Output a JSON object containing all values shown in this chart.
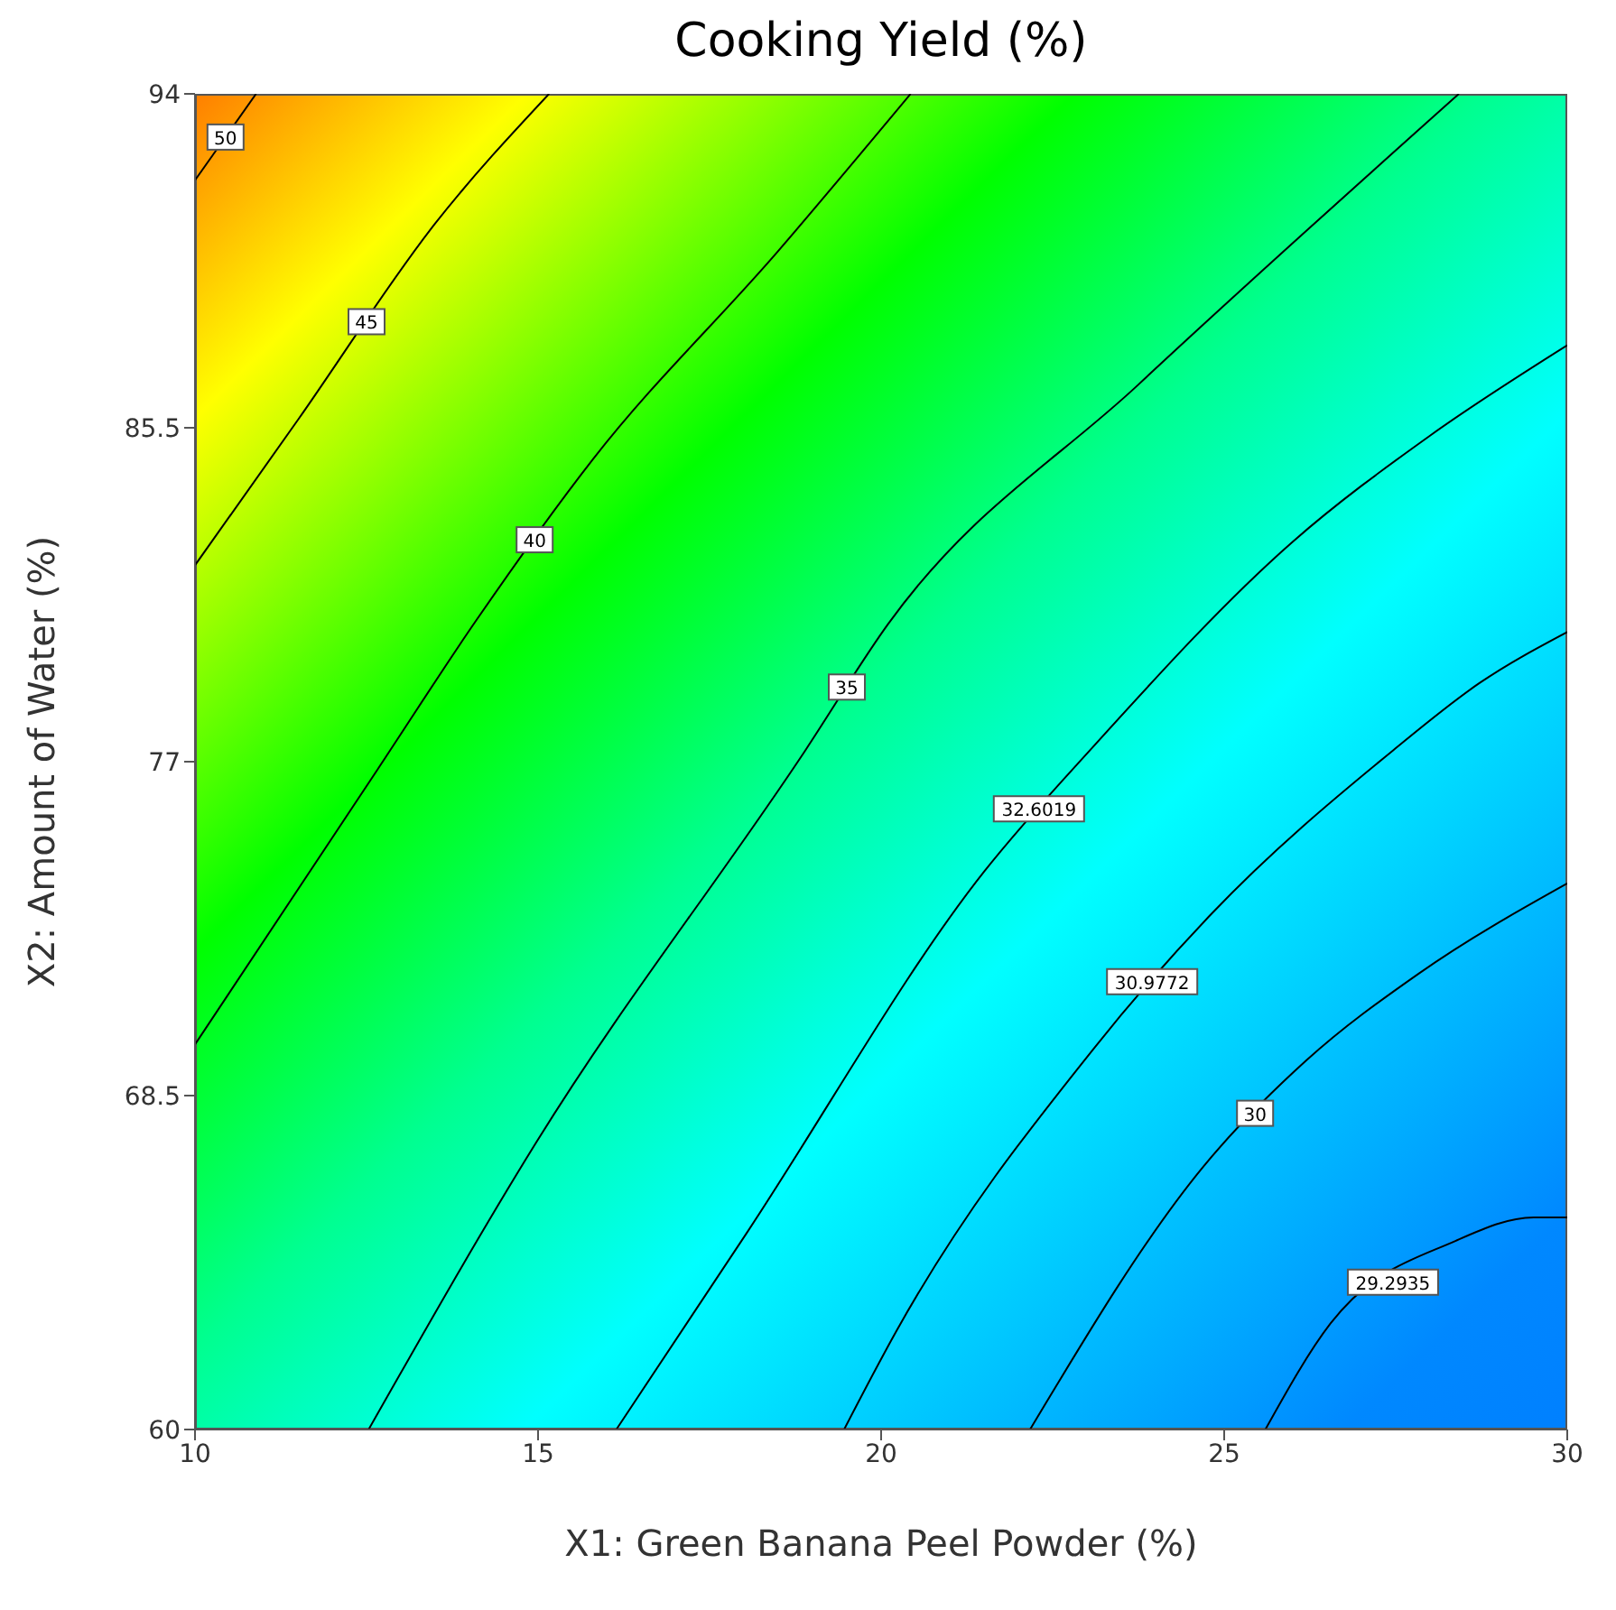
{
  "chart_data": {
    "type": "line",
    "title": "Cooking Yield (%)",
    "xlabel": "X1: Green Banana Peel Powder (%)",
    "ylabel": "X2: Amount of Water (%)",
    "xlim": [
      10,
      30
    ],
    "xticks": [
      10,
      15,
      20,
      25,
      30
    ],
    "ylim": [
      60,
      94
    ],
    "yticks": [
      60,
      68.5,
      77,
      85.5,
      94
    ],
    "marker": "none",
    "line_style": "solid",
    "grid": false,
    "legend": false,
    "series": [
      {
        "name": "50",
        "color": "#000000",
        "x": [
          10,
          10.89
        ],
        "values": [
          91.8,
          94
        ]
      },
      {
        "name": "45",
        "color": "#000000",
        "x": [
          10,
          11.5,
          13.5,
          15.16
        ],
        "values": [
          82.0,
          85.7,
          90.7,
          94
        ]
      },
      {
        "name": "40",
        "color": "#000000",
        "x": [
          10,
          12.66,
          14.1,
          15.8,
          18.5,
          20.43
        ],
        "values": [
          69.8,
          76.8,
          80.6,
          84.7,
          90.0,
          94
        ]
      },
      {
        "name": "35",
        "color": "#000000",
        "x": [
          12.53,
          14.97,
          18.9,
          20.1,
          23.75,
          28.42
        ],
        "values": [
          60,
          67.3,
          77.3,
          80.5,
          86.6,
          94
        ]
      },
      {
        "name": "32.6019",
        "color": "#000000",
        "x": [
          16.14,
          18.04,
          21.5,
          23.1,
          26.0,
          28.0,
          30
        ],
        "values": [
          60,
          65.0,
          74.2,
          77.4,
          82.6,
          85.3,
          87.6
        ]
      },
      {
        "name": "30.9772",
        "color": "#000000",
        "x": [
          19.46,
          20.22,
          23.1,
          24.8,
          27.47,
          28.72,
          30
        ],
        "values": [
          60,
          62.5,
          69.7,
          73.1,
          77.3,
          79.0,
          80.3
        ]
      },
      {
        "name": "30",
        "color": "#000000",
        "x": [
          22.17,
          24.7,
          26.2,
          27.83,
          30
        ],
        "values": [
          60,
          66.7,
          69.4,
          71.6,
          73.9
        ]
      },
      {
        "name": "29.2935",
        "color": "#000000",
        "x": [
          25.6,
          26.55,
          28.37,
          29.51,
          30
        ],
        "values": [
          60,
          62.7,
          64.8,
          65.4,
          65.4
        ]
      }
    ]
  }
}
